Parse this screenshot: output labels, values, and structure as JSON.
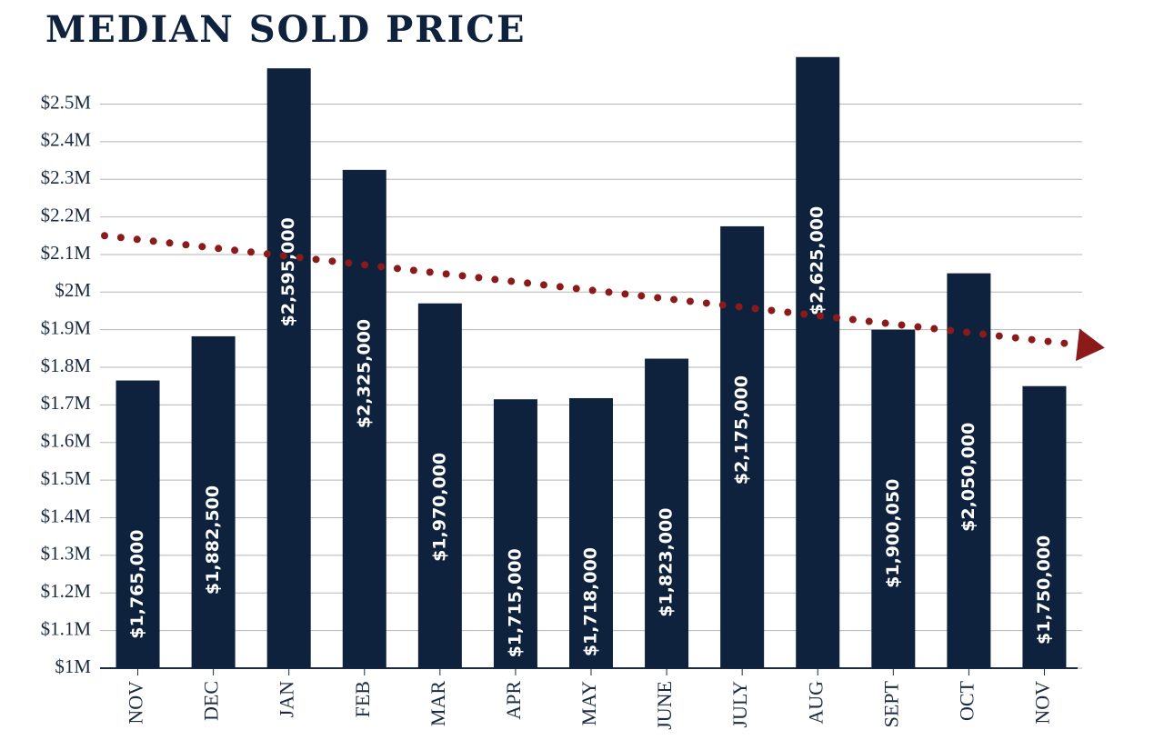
{
  "chart_data": {
    "type": "bar",
    "title": "MEDIAN SOLD PRICE",
    "categories": [
      "NOV",
      "DEC",
      "JAN",
      "FEB",
      "MAR",
      "APR",
      "MAY",
      "JUNE",
      "JULY",
      "AUG",
      "SEPT",
      "OCT",
      "NOV"
    ],
    "values": [
      1765000,
      1882500,
      2595000,
      2325000,
      1970000,
      1715000,
      1718000,
      1823000,
      2175000,
      2625000,
      1900050,
      2050000,
      1750000
    ],
    "value_labels": [
      "$1,765,000",
      "$1,882,500",
      "$2,595,000",
      "$2,325,000",
      "$1,970,000",
      "$1,715,000",
      "$1,718,000",
      "$1,823,000",
      "$2,175,000",
      "$2,625,000",
      "$1,900,050",
      "$2,050,000",
      "$1,750,000"
    ],
    "color": "#0e213d",
    "ylim": [
      1000000,
      2680000
    ],
    "yticks": [
      {
        "value": 1000000,
        "label": "$1M"
      },
      {
        "value": 1100000,
        "label": "$1.1M"
      },
      {
        "value": 1200000,
        "label": "$1.2M"
      },
      {
        "value": 1300000,
        "label": "$1.3M"
      },
      {
        "value": 1400000,
        "label": "$1.4M"
      },
      {
        "value": 1500000,
        "label": "$1.5M"
      },
      {
        "value": 1600000,
        "label": "$1.6M"
      },
      {
        "value": 1700000,
        "label": "$1.7M"
      },
      {
        "value": 1800000,
        "label": "$1.8M"
      },
      {
        "value": 1900000,
        "label": "$1.9M"
      },
      {
        "value": 2000000,
        "label": "$2M"
      },
      {
        "value": 2100000,
        "label": "$2.1M"
      },
      {
        "value": 2200000,
        "label": "$2.2M"
      },
      {
        "value": 2300000,
        "label": "$2.3M"
      },
      {
        "value": 2400000,
        "label": "$2.4M"
      },
      {
        "value": 2500000,
        "label": "$2.5M"
      }
    ],
    "grid": true,
    "trendline": {
      "color": "#8b1a1a",
      "values": [
        2150000,
        1860000
      ]
    }
  }
}
